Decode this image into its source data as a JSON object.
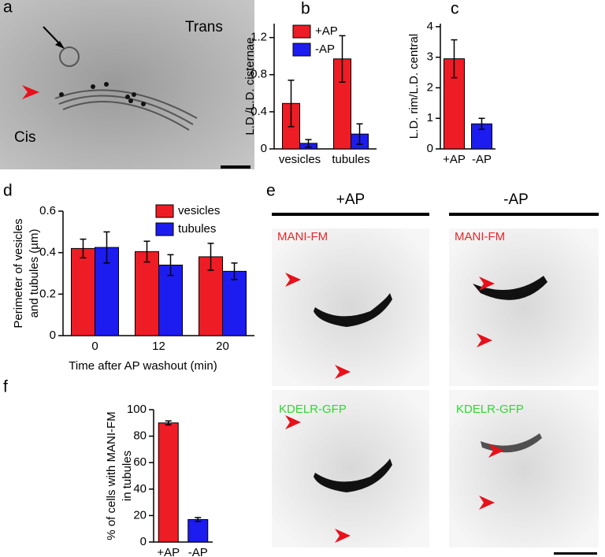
{
  "panels": {
    "a": {
      "label": "a",
      "top_text": "Trans",
      "bottom_text": "Cis"
    },
    "e": {
      "label": "e",
      "columns": [
        "+AP",
        "-AP"
      ],
      "rows": [
        "MANI-FM",
        "KDELR-GFP"
      ]
    }
  },
  "chart_data": [
    {
      "type": "bar",
      "label": "b",
      "ylabel": [
        "L.D./L.D. cisternae"
      ],
      "categories": [
        "vesicles",
        "tubules"
      ],
      "series": [
        {
          "name": "+AP",
          "color": "#ee1c25",
          "values": [
            0.49,
            0.97
          ],
          "errors": [
            0.25,
            0.25
          ]
        },
        {
          "name": "-AP",
          "color": "#1c1cf0",
          "values": [
            0.06,
            0.16
          ],
          "errors": [
            0.04,
            0.11
          ]
        }
      ],
      "ylim": [
        0,
        1.35
      ],
      "yticks": [
        0,
        0.4,
        0.8,
        1.2
      ],
      "legend": "upper-left"
    },
    {
      "type": "bar",
      "label": "c",
      "ylabel": [
        "L.D. rim/L.D. central"
      ],
      "categories": [
        "+AP",
        "-AP"
      ],
      "series": [
        {
          "colors": [
            "#ee1c25",
            "#1c1cf0"
          ],
          "values": [
            2.95,
            0.82
          ],
          "errors": [
            0.62,
            0.18
          ]
        }
      ],
      "ylim": [
        0,
        4.1
      ],
      "yticks": [
        0,
        1,
        2,
        3,
        4
      ]
    },
    {
      "type": "bar",
      "label": "d",
      "ylabel": [
        "Perimeter of vesicles",
        "and tubules (µm)"
      ],
      "xlabel": "Time after AP washout (min)",
      "categories": [
        "0",
        "12",
        "20"
      ],
      "series": [
        {
          "name": "vesicles",
          "color": "#ee1c25",
          "values": [
            0.42,
            0.405,
            0.38
          ],
          "errors": [
            0.045,
            0.05,
            0.065
          ]
        },
        {
          "name": "tubules",
          "color": "#1c1cf0",
          "values": [
            0.425,
            0.34,
            0.31
          ],
          "errors": [
            0.075,
            0.05,
            0.04
          ]
        }
      ],
      "ylim": [
        0,
        0.6
      ],
      "yticks": [
        0,
        0.2,
        0.4,
        0.6
      ],
      "legend": "upper-right"
    },
    {
      "type": "bar",
      "label": "f",
      "ylabel": [
        "% of cells with MANI-FM",
        "in tubules"
      ],
      "categories": [
        "+AP",
        "-AP"
      ],
      "series": [
        {
          "colors": [
            "#ee1c25",
            "#1c1cf0"
          ],
          "values": [
            90,
            17
          ],
          "errors": [
            1.5,
            1.5
          ]
        }
      ],
      "ylim": [
        0,
        100
      ],
      "yticks": [
        0,
        20,
        40,
        60,
        80,
        100
      ]
    }
  ]
}
